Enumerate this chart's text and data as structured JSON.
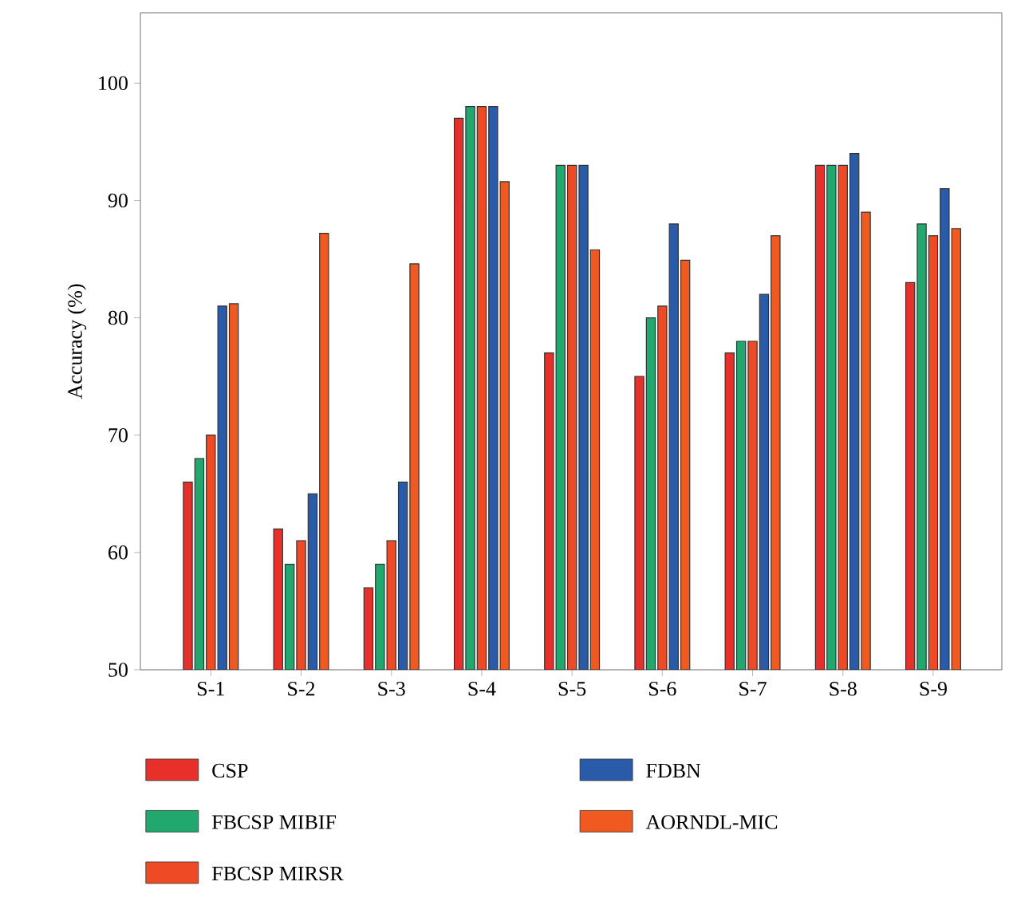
{
  "chart_data": {
    "type": "bar",
    "ylabel": "Accuracy (%)",
    "categories": [
      "S-1",
      "S-2",
      "S-3",
      "S-4",
      "S-5",
      "S-6",
      "S-7",
      "S-8",
      "S-9"
    ],
    "series": [
      {
        "name": "CSP",
        "color": "#e8302a",
        "values": [
          66,
          62,
          57,
          97,
          77,
          75,
          77,
          93,
          83
        ]
      },
      {
        "name": "FBCSP MIBIF",
        "color": "#20a86e",
        "values": [
          68,
          59,
          59,
          98,
          93,
          80,
          78,
          93,
          88
        ]
      },
      {
        "name": "FBCSP MIRSR",
        "color": "#ee4a25",
        "values": [
          70,
          61,
          61,
          98,
          93,
          81,
          78,
          93,
          87
        ]
      },
      {
        "name": "FDBN",
        "color": "#2a5ba8",
        "values": [
          81,
          65,
          66,
          98,
          93,
          88,
          82,
          94,
          91
        ]
      },
      {
        "name": "AORNDL-MIC",
        "color": "#f0591f",
        "values": [
          81.2,
          87.2,
          84.6,
          91.6,
          85.8,
          84.9,
          87,
          89,
          87.6
        ]
      }
    ],
    "ylim": [
      50,
      106
    ],
    "yticks": [
      50,
      60,
      70,
      80,
      90,
      100
    ],
    "legend": "bottom",
    "grid": false
  }
}
